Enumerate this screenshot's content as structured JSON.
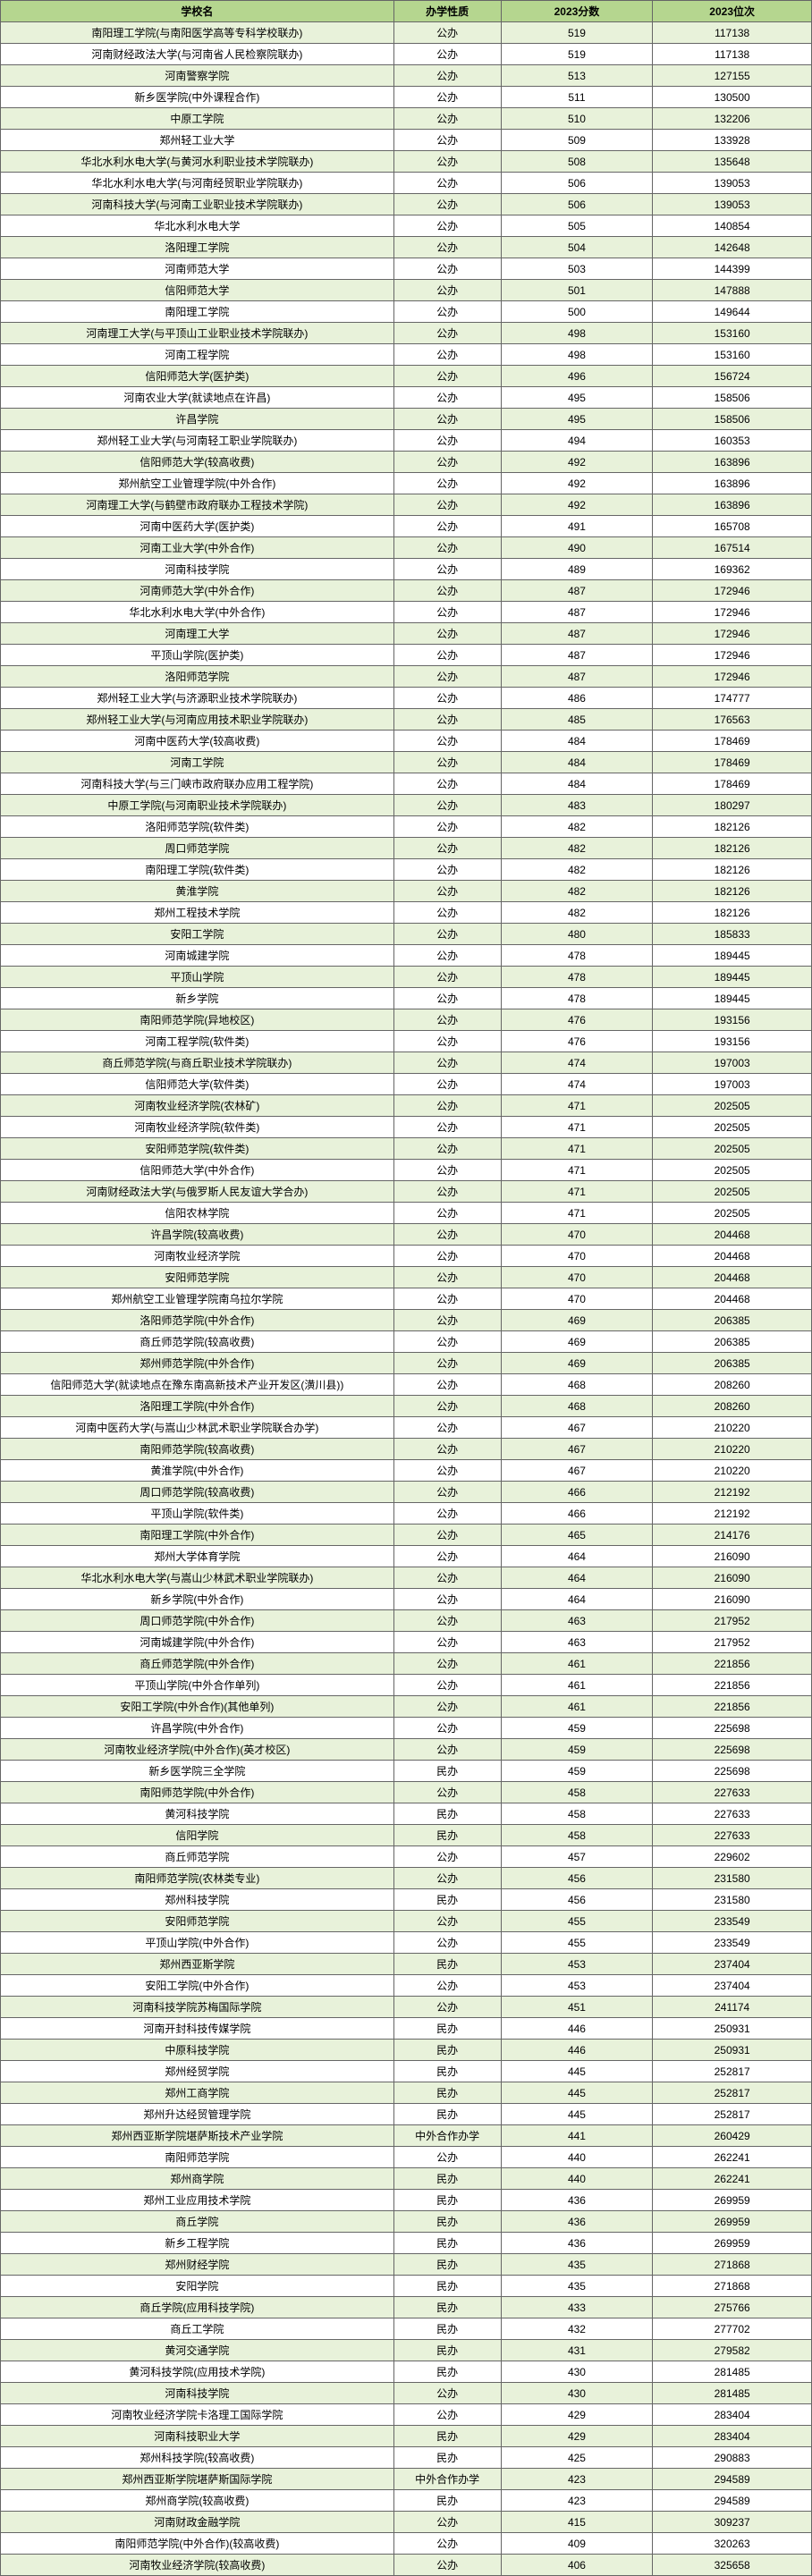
{
  "headers": {
    "name": "学校名",
    "type": "办学性质",
    "score": "2023分数",
    "rank": "2023位次"
  },
  "rows": [
    {
      "name": "南阳理工学院(与南阳医学高等专科学校联办)",
      "type": "公办",
      "score": "519",
      "rank": "117138"
    },
    {
      "name": "河南财经政法大学(与河南省人民检察院联办)",
      "type": "公办",
      "score": "519",
      "rank": "117138"
    },
    {
      "name": "河南警察学院",
      "type": "公办",
      "score": "513",
      "rank": "127155"
    },
    {
      "name": "新乡医学院(中外课程合作)",
      "type": "公办",
      "score": "511",
      "rank": "130500"
    },
    {
      "name": "中原工学院",
      "type": "公办",
      "score": "510",
      "rank": "132206"
    },
    {
      "name": "郑州轻工业大学",
      "type": "公办",
      "score": "509",
      "rank": "133928"
    },
    {
      "name": "华北水利水电大学(与黄河水利职业技术学院联办)",
      "type": "公办",
      "score": "508",
      "rank": "135648"
    },
    {
      "name": "华北水利水电大学(与河南经贸职业学院联办)",
      "type": "公办",
      "score": "506",
      "rank": "139053"
    },
    {
      "name": "河南科技大学(与河南工业职业技术学院联办)",
      "type": "公办",
      "score": "506",
      "rank": "139053"
    },
    {
      "name": "华北水利水电大学",
      "type": "公办",
      "score": "505",
      "rank": "140854"
    },
    {
      "name": "洛阳理工学院",
      "type": "公办",
      "score": "504",
      "rank": "142648"
    },
    {
      "name": "河南师范大学",
      "type": "公办",
      "score": "503",
      "rank": "144399"
    },
    {
      "name": "信阳师范大学",
      "type": "公办",
      "score": "501",
      "rank": "147888"
    },
    {
      "name": "南阳理工学院",
      "type": "公办",
      "score": "500",
      "rank": "149644"
    },
    {
      "name": "河南理工大学(与平顶山工业职业技术学院联办)",
      "type": "公办",
      "score": "498",
      "rank": "153160"
    },
    {
      "name": "河南工程学院",
      "type": "公办",
      "score": "498",
      "rank": "153160"
    },
    {
      "name": "信阳师范大学(医护类)",
      "type": "公办",
      "score": "496",
      "rank": "156724"
    },
    {
      "name": "河南农业大学(就读地点在许昌)",
      "type": "公办",
      "score": "495",
      "rank": "158506"
    },
    {
      "name": "许昌学院",
      "type": "公办",
      "score": "495",
      "rank": "158506"
    },
    {
      "name": "郑州轻工业大学(与河南轻工职业学院联办)",
      "type": "公办",
      "score": "494",
      "rank": "160353"
    },
    {
      "name": "信阳师范大学(较高收费)",
      "type": "公办",
      "score": "492",
      "rank": "163896"
    },
    {
      "name": "郑州航空工业管理学院(中外合作)",
      "type": "公办",
      "score": "492",
      "rank": "163896"
    },
    {
      "name": "河南理工大学(与鹤壁市政府联办工程技术学院)",
      "type": "公办",
      "score": "492",
      "rank": "163896"
    },
    {
      "name": "河南中医药大学(医护类)",
      "type": "公办",
      "score": "491",
      "rank": "165708"
    },
    {
      "name": "河南工业大学(中外合作)",
      "type": "公办",
      "score": "490",
      "rank": "167514"
    },
    {
      "name": "河南科技学院",
      "type": "公办",
      "score": "489",
      "rank": "169362"
    },
    {
      "name": "河南师范大学(中外合作)",
      "type": "公办",
      "score": "487",
      "rank": "172946"
    },
    {
      "name": "华北水利水电大学(中外合作)",
      "type": "公办",
      "score": "487",
      "rank": "172946"
    },
    {
      "name": "河南理工大学",
      "type": "公办",
      "score": "487",
      "rank": "172946"
    },
    {
      "name": "平顶山学院(医护类)",
      "type": "公办",
      "score": "487",
      "rank": "172946"
    },
    {
      "name": "洛阳师范学院",
      "type": "公办",
      "score": "487",
      "rank": "172946"
    },
    {
      "name": "郑州轻工业大学(与济源职业技术学院联办)",
      "type": "公办",
      "score": "486",
      "rank": "174777"
    },
    {
      "name": "郑州轻工业大学(与河南应用技术职业学院联办)",
      "type": "公办",
      "score": "485",
      "rank": "176563"
    },
    {
      "name": "河南中医药大学(较高收费)",
      "type": "公办",
      "score": "484",
      "rank": "178469"
    },
    {
      "name": "河南工学院",
      "type": "公办",
      "score": "484",
      "rank": "178469"
    },
    {
      "name": "河南科技大学(与三门峡市政府联办应用工程学院)",
      "type": "公办",
      "score": "484",
      "rank": "178469"
    },
    {
      "name": "中原工学院(与河南职业技术学院联办)",
      "type": "公办",
      "score": "483",
      "rank": "180297"
    },
    {
      "name": "洛阳师范学院(软件类)",
      "type": "公办",
      "score": "482",
      "rank": "182126"
    },
    {
      "name": "周口师范学院",
      "type": "公办",
      "score": "482",
      "rank": "182126"
    },
    {
      "name": "南阳理工学院(软件类)",
      "type": "公办",
      "score": "482",
      "rank": "182126"
    },
    {
      "name": "黄淮学院",
      "type": "公办",
      "score": "482",
      "rank": "182126"
    },
    {
      "name": "郑州工程技术学院",
      "type": "公办",
      "score": "482",
      "rank": "182126"
    },
    {
      "name": "安阳工学院",
      "type": "公办",
      "score": "480",
      "rank": "185833"
    },
    {
      "name": "河南城建学院",
      "type": "公办",
      "score": "478",
      "rank": "189445"
    },
    {
      "name": "平顶山学院",
      "type": "公办",
      "score": "478",
      "rank": "189445"
    },
    {
      "name": "新乡学院",
      "type": "公办",
      "score": "478",
      "rank": "189445"
    },
    {
      "name": "南阳师范学院(异地校区)",
      "type": "公办",
      "score": "476",
      "rank": "193156"
    },
    {
      "name": "河南工程学院(软件类)",
      "type": "公办",
      "score": "476",
      "rank": "193156"
    },
    {
      "name": "商丘师范学院(与商丘职业技术学院联办)",
      "type": "公办",
      "score": "474",
      "rank": "197003"
    },
    {
      "name": "信阳师范大学(软件类)",
      "type": "公办",
      "score": "474",
      "rank": "197003"
    },
    {
      "name": "河南牧业经济学院(农林矿)",
      "type": "公办",
      "score": "471",
      "rank": "202505"
    },
    {
      "name": "河南牧业经济学院(软件类)",
      "type": "公办",
      "score": "471",
      "rank": "202505"
    },
    {
      "name": "安阳师范学院(软件类)",
      "type": "公办",
      "score": "471",
      "rank": "202505"
    },
    {
      "name": "信阳师范大学(中外合作)",
      "type": "公办",
      "score": "471",
      "rank": "202505"
    },
    {
      "name": "河南财经政法大学(与俄罗斯人民友谊大学合办)",
      "type": "公办",
      "score": "471",
      "rank": "202505"
    },
    {
      "name": "信阳农林学院",
      "type": "公办",
      "score": "471",
      "rank": "202505"
    },
    {
      "name": "许昌学院(较高收费)",
      "type": "公办",
      "score": "470",
      "rank": "204468"
    },
    {
      "name": "河南牧业经济学院",
      "type": "公办",
      "score": "470",
      "rank": "204468"
    },
    {
      "name": "安阳师范学院",
      "type": "公办",
      "score": "470",
      "rank": "204468"
    },
    {
      "name": "郑州航空工业管理学院南乌拉尔学院",
      "type": "公办",
      "score": "470",
      "rank": "204468"
    },
    {
      "name": "洛阳师范学院(中外合作)",
      "type": "公办",
      "score": "469",
      "rank": "206385"
    },
    {
      "name": "商丘师范学院(较高收费)",
      "type": "公办",
      "score": "469",
      "rank": "206385"
    },
    {
      "name": "郑州师范学院(中外合作)",
      "type": "公办",
      "score": "469",
      "rank": "206385"
    },
    {
      "name": "信阳师范大学(就读地点在豫东南高新技术产业开发区(潢川县))",
      "type": "公办",
      "score": "468",
      "rank": "208260"
    },
    {
      "name": "洛阳理工学院(中外合作)",
      "type": "公办",
      "score": "468",
      "rank": "208260"
    },
    {
      "name": "河南中医药大学(与嵩山少林武术职业学院联合办学)",
      "type": "公办",
      "score": "467",
      "rank": "210220"
    },
    {
      "name": "南阳师范学院(较高收费)",
      "type": "公办",
      "score": "467",
      "rank": "210220"
    },
    {
      "name": "黄淮学院(中外合作)",
      "type": "公办",
      "score": "467",
      "rank": "210220"
    },
    {
      "name": "周口师范学院(较高收费)",
      "type": "公办",
      "score": "466",
      "rank": "212192"
    },
    {
      "name": "平顶山学院(软件类)",
      "type": "公办",
      "score": "466",
      "rank": "212192"
    },
    {
      "name": "南阳理工学院(中外合作)",
      "type": "公办",
      "score": "465",
      "rank": "214176"
    },
    {
      "name": "郑州大学体育学院",
      "type": "公办",
      "score": "464",
      "rank": "216090"
    },
    {
      "name": "华北水利水电大学(与嵩山少林武术职业学院联办)",
      "type": "公办",
      "score": "464",
      "rank": "216090"
    },
    {
      "name": "新乡学院(中外合作)",
      "type": "公办",
      "score": "464",
      "rank": "216090"
    },
    {
      "name": "周口师范学院(中外合作)",
      "type": "公办",
      "score": "463",
      "rank": "217952"
    },
    {
      "name": "河南城建学院(中外合作)",
      "type": "公办",
      "score": "463",
      "rank": "217952"
    },
    {
      "name": "商丘师范学院(中外合作)",
      "type": "公办",
      "score": "461",
      "rank": "221856"
    },
    {
      "name": "平顶山学院(中外合作单列)",
      "type": "公办",
      "score": "461",
      "rank": "221856"
    },
    {
      "name": "安阳工学院(中外合作)(其他单列)",
      "type": "公办",
      "score": "461",
      "rank": "221856"
    },
    {
      "name": "许昌学院(中外合作)",
      "type": "公办",
      "score": "459",
      "rank": "225698"
    },
    {
      "name": "河南牧业经济学院(中外合作)(英才校区)",
      "type": "公办",
      "score": "459",
      "rank": "225698"
    },
    {
      "name": "新乡医学院三全学院",
      "type": "民办",
      "score": "459",
      "rank": "225698"
    },
    {
      "name": "南阳师范学院(中外合作)",
      "type": "公办",
      "score": "458",
      "rank": "227633"
    },
    {
      "name": "黄河科技学院",
      "type": "民办",
      "score": "458",
      "rank": "227633"
    },
    {
      "name": "信阳学院",
      "type": "民办",
      "score": "458",
      "rank": "227633"
    },
    {
      "name": "商丘师范学院",
      "type": "公办",
      "score": "457",
      "rank": "229602"
    },
    {
      "name": "南阳师范学院(农林类专业)",
      "type": "公办",
      "score": "456",
      "rank": "231580"
    },
    {
      "name": "郑州科技学院",
      "type": "民办",
      "score": "456",
      "rank": "231580"
    },
    {
      "name": "安阳师范学院",
      "type": "公办",
      "score": "455",
      "rank": "233549"
    },
    {
      "name": "平顶山学院(中外合作)",
      "type": "公办",
      "score": "455",
      "rank": "233549"
    },
    {
      "name": "郑州西亚斯学院",
      "type": "民办",
      "score": "453",
      "rank": "237404"
    },
    {
      "name": "安阳工学院(中外合作)",
      "type": "公办",
      "score": "453",
      "rank": "237404"
    },
    {
      "name": "河南科技学院苏梅国际学院",
      "type": "公办",
      "score": "451",
      "rank": "241174"
    },
    {
      "name": "河南开封科技传媒学院",
      "type": "民办",
      "score": "446",
      "rank": "250931"
    },
    {
      "name": "中原科技学院",
      "type": "民办",
      "score": "446",
      "rank": "250931"
    },
    {
      "name": "郑州经贸学院",
      "type": "民办",
      "score": "445",
      "rank": "252817"
    },
    {
      "name": "郑州工商学院",
      "type": "民办",
      "score": "445",
      "rank": "252817"
    },
    {
      "name": "郑州升达经贸管理学院",
      "type": "民办",
      "score": "445",
      "rank": "252817"
    },
    {
      "name": "郑州西亚斯学院堪萨斯技术产业学院",
      "type": "中外合作办学",
      "score": "441",
      "rank": "260429"
    },
    {
      "name": "南阳师范学院",
      "type": "公办",
      "score": "440",
      "rank": "262241"
    },
    {
      "name": "郑州商学院",
      "type": "民办",
      "score": "440",
      "rank": "262241"
    },
    {
      "name": "郑州工业应用技术学院",
      "type": "民办",
      "score": "436",
      "rank": "269959"
    },
    {
      "name": "商丘学院",
      "type": "民办",
      "score": "436",
      "rank": "269959"
    },
    {
      "name": "新乡工程学院",
      "type": "民办",
      "score": "436",
      "rank": "269959"
    },
    {
      "name": "郑州财经学院",
      "type": "民办",
      "score": "435",
      "rank": "271868"
    },
    {
      "name": "安阳学院",
      "type": "民办",
      "score": "435",
      "rank": "271868"
    },
    {
      "name": "商丘学院(应用科技学院)",
      "type": "民办",
      "score": "433",
      "rank": "275766"
    },
    {
      "name": "商丘工学院",
      "type": "民办",
      "score": "432",
      "rank": "277702"
    },
    {
      "name": "黄河交通学院",
      "type": "民办",
      "score": "431",
      "rank": "279582"
    },
    {
      "name": "黄河科技学院(应用技术学院)",
      "type": "民办",
      "score": "430",
      "rank": "281485"
    },
    {
      "name": "河南科技学院",
      "type": "公办",
      "score": "430",
      "rank": "281485"
    },
    {
      "name": "河南牧业经济学院卡洛理工国际学院",
      "type": "公办",
      "score": "429",
      "rank": "283404"
    },
    {
      "name": "河南科技职业大学",
      "type": "民办",
      "score": "429",
      "rank": "283404"
    },
    {
      "name": "郑州科技学院(较高收费)",
      "type": "民办",
      "score": "425",
      "rank": "290883"
    },
    {
      "name": "郑州西亚斯学院堪萨斯国际学院",
      "type": "中外合作办学",
      "score": "423",
      "rank": "294589"
    },
    {
      "name": "郑州商学院(较高收费)",
      "type": "民办",
      "score": "423",
      "rank": "294589"
    },
    {
      "name": "河南财政金融学院",
      "type": "公办",
      "score": "415",
      "rank": "309237"
    },
    {
      "name": "南阳师范学院(中外合作)(较高收费)",
      "type": "公办",
      "score": "409",
      "rank": "320263"
    },
    {
      "name": "河南牧业经济学院(较高收费)",
      "type": "公办",
      "score": "406",
      "rank": "325658"
    }
  ]
}
